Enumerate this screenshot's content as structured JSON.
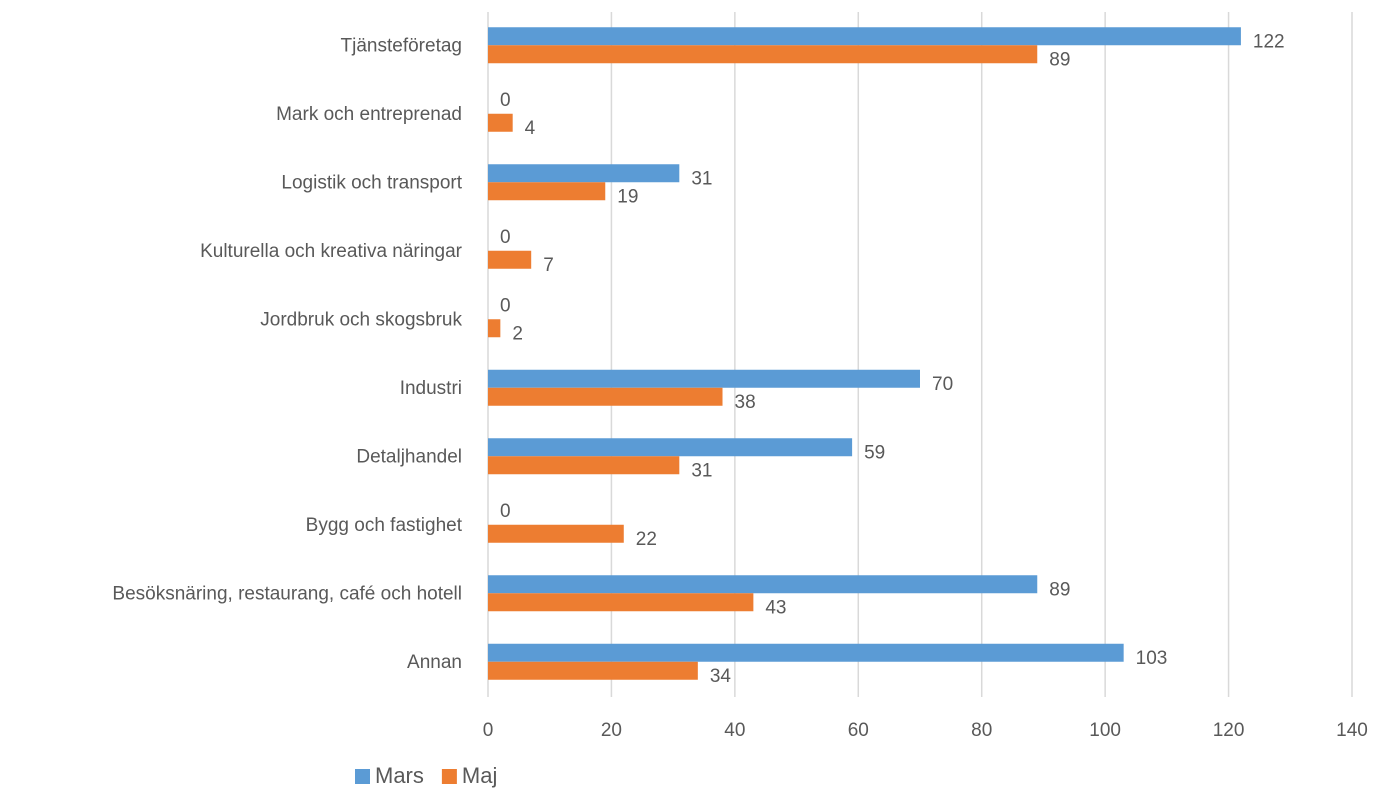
{
  "chart_data": {
    "type": "bar",
    "orientation": "horizontal",
    "categories": [
      "Tjänsteföretag",
      "Mark och entreprenad",
      "Logistik och transport",
      "Kulturella och kreativa näringar",
      "Jordbruk och skogsbruk",
      "Industri",
      "Detaljhandel",
      "Bygg och fastighet",
      "Besöksnäring, restaurang, café och hotell",
      "Annan"
    ],
    "series": [
      {
        "name": "Mars",
        "color": "#5b9bd5",
        "values": [
          122,
          0,
          31,
          0,
          0,
          70,
          59,
          0,
          89,
          103
        ]
      },
      {
        "name": "Maj",
        "color": "#ed7d31",
        "values": [
          89,
          4,
          19,
          7,
          2,
          38,
          31,
          22,
          43,
          34
        ]
      }
    ],
    "xlim": [
      0,
      140
    ],
    "xticks": [
      0,
      20,
      40,
      60,
      80,
      100,
      120,
      140
    ],
    "grid": true,
    "legend": "bottom"
  }
}
